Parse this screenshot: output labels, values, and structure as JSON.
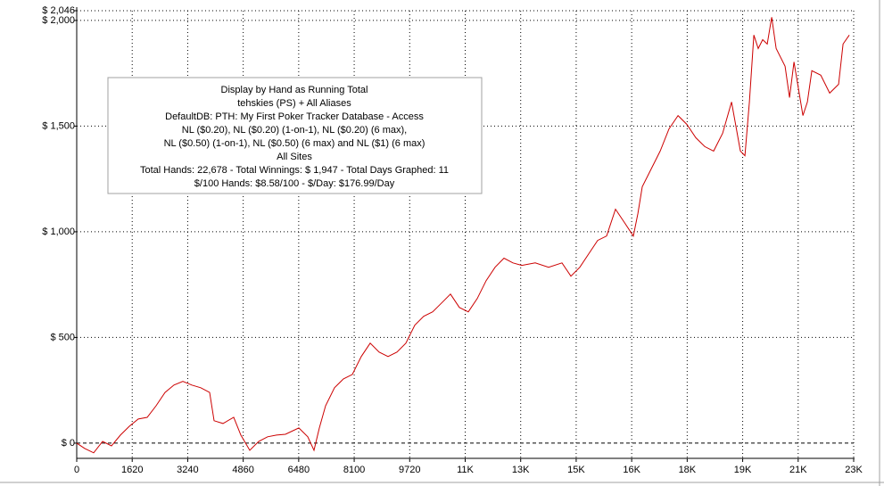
{
  "chart_data": {
    "type": "line",
    "annotation_lines": [
      "Display by Hand as Running Total",
      "tehskies (PS) + All Aliases",
      "DefaultDB: PTH: My First Poker Tracker Database - Access",
      "NL ($0.20), NL ($0.20) (1-on-1), NL ($0.20) (6 max),",
      "NL ($0.50) (1-on-1), NL ($0.50) (6 max) and NL ($1) (6 max)",
      "All Sites",
      "Total Hands: 22,678 - Total Winnings: $ 1,947 - Total Days Graphed: 11",
      "$/100 Hands: $8.58/100 - $/Day: $176.99/Day"
    ],
    "color": "#cc0000",
    "grid": true,
    "x": [
      0,
      234,
      495,
      755,
      1016,
      1276,
      1536,
      1797,
      2057,
      2317,
      2578,
      2838,
      3098,
      3359,
      3619,
      3879,
      4010,
      4270,
      4583,
      4791,
      5052,
      5312,
      5573,
      5833,
      6093,
      6484,
      6744,
      6927,
      7083,
      7265,
      7526,
      7786,
      8046,
      8307,
      8567,
      8828,
      9088,
      9349,
      9609,
      9869,
      10130,
      10390,
      10651,
      10911,
      11171,
      11432,
      11692,
      11953,
      12213,
      12473,
      12734,
      12994,
      13385,
      13775,
      14166,
      14426,
      14687,
      14947,
      15208,
      15468,
      15728,
      15989,
      16249,
      16380,
      16510,
      16770,
      17031,
      17291,
      17552,
      17812,
      18072,
      18333,
      18593,
      18854,
      19114,
      19374,
      19505,
      19635,
      19765,
      19895,
      20025,
      20156,
      20286,
      20416,
      20677,
      20807,
      20937,
      21068,
      21198,
      21328,
      21458,
      21719,
      21979,
      22240,
      22370,
      22552
    ],
    "values": [
      0,
      -25,
      -46,
      8,
      -13,
      38,
      80,
      114,
      122,
      177,
      240,
      275,
      292,
      275,
      262,
      240,
      106,
      93,
      122,
      38,
      -34,
      8,
      30,
      38,
      42,
      72,
      30,
      -34,
      72,
      177,
      262,
      304,
      325,
      410,
      473,
      431,
      410,
      431,
      473,
      558,
      600,
      621,
      663,
      705,
      642,
      621,
      684,
      769,
      832,
      875,
      853,
      841,
      853,
      832,
      853,
      790,
      832,
      896,
      959,
      980,
      1107,
      1044,
      980,
      1086,
      1213,
      1297,
      1382,
      1487,
      1550,
      1508,
      1445,
      1403,
      1382,
      1466,
      1614,
      1382,
      1360,
      1614,
      1931,
      1867,
      1909,
      1888,
      2015,
      1867,
      1783,
      1635,
      1804,
      1677,
      1550,
      1614,
      1762,
      1741,
      1656,
      1698,
      1888,
      1931
    ],
    "xlim": [
      0,
      22680
    ],
    "ylim": [
      -72,
      2046
    ],
    "xticks": [
      0,
      1620,
      3240,
      4860,
      6480,
      8100,
      9720,
      {
        "value": 11340,
        "label": "11K"
      },
      {
        "value": 12960,
        "label": "13K"
      },
      {
        "value": 14580,
        "label": "15K"
      },
      {
        "value": 16200,
        "label": "16K"
      },
      {
        "value": 17820,
        "label": "18K"
      },
      {
        "value": 19440,
        "label": "19K"
      },
      {
        "value": 21060,
        "label": "21K"
      },
      {
        "value": 22680,
        "label": "23K"
      }
    ],
    "yticks": [
      {
        "value": 0,
        "label": "$ 0"
      },
      {
        "value": 500,
        "label": "$ 500"
      },
      {
        "value": 1000,
        "label": "$ 1,000"
      },
      {
        "value": 1500,
        "label": "$ 1,500"
      },
      {
        "value": 2000,
        "label": "$ 2,000"
      },
      {
        "value": 2046,
        "label": "$ 2,046"
      }
    ]
  }
}
